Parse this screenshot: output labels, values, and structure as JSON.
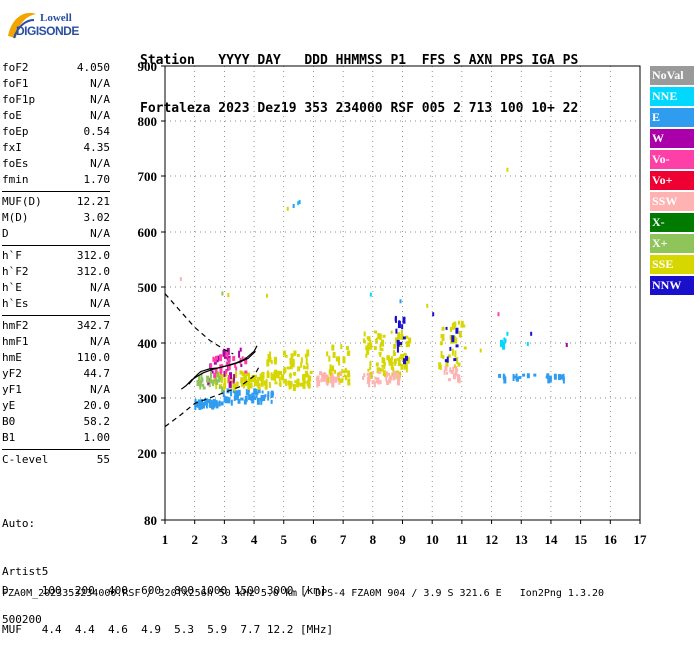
{
  "logo": {
    "line1": "Lowell",
    "line2": "DIGISONDE"
  },
  "header": {
    "row1": "Station   YYYY DAY   DDD HHMMSS P1  FFS S AXN PPS IGA PS",
    "row2": "Fortaleza 2023 Dez19 353 234000 RSF 005 2 713 100 10+ 22"
  },
  "params": [
    [
      {
        "label": "foF2",
        "value": "4.050"
      },
      {
        "label": "foF1",
        "value": "N/A"
      },
      {
        "label": "foF1p",
        "value": "N/A"
      },
      {
        "label": "foE",
        "value": "N/A"
      },
      {
        "label": "foEp",
        "value": "0.54"
      },
      {
        "label": "fxI",
        "value": "4.35"
      },
      {
        "label": "foEs",
        "value": "N/A"
      },
      {
        "label": "fmin",
        "value": "1.70"
      }
    ],
    [
      {
        "label": "MUF(D)",
        "value": "12.21"
      },
      {
        "label": "M(D)",
        "value": "3.02"
      },
      {
        "label": "D",
        "value": "N/A"
      }
    ],
    [
      {
        "label": "h`F",
        "value": "312.0"
      },
      {
        "label": "h`F2",
        "value": "312.0"
      },
      {
        "label": "h`E",
        "value": "N/A"
      },
      {
        "label": "h`Es",
        "value": "N/A"
      }
    ],
    [
      {
        "label": "hmF2",
        "value": "342.7"
      },
      {
        "label": "hmF1",
        "value": "N/A"
      },
      {
        "label": "hmE",
        "value": "110.0"
      },
      {
        "label": "yF2",
        "value": "44.7"
      },
      {
        "label": "yF1",
        "value": "N/A"
      },
      {
        "label": "yE",
        "value": "20.0"
      },
      {
        "label": "B0",
        "value": "58.2"
      },
      {
        "label": "B1",
        "value": "1.00"
      }
    ],
    [
      {
        "label": "C-level",
        "value": "55"
      }
    ]
  ],
  "extra": {
    "auto": "Auto:",
    "artist": "Artist5",
    "code": "500200"
  },
  "footer": {
    "d_row": "D     100  200  400  600  800 1000 1500 3000 [km]",
    "muf_row": "MUF   4.4  4.4  4.6  4.9  5.3  5.9  7.7 12.2 [MHz]",
    "file_row": "FZA0M_2023353234000.RSF / 320fx256h 50 kHz 5.0 km / DPS-4 FZA0M 904 / 3.9 S 321.6 E   Ion2Png 1.3.20"
  },
  "legend": [
    {
      "label": "NoVal",
      "color": "#9a9a9a"
    },
    {
      "label": "NNE",
      "color": "#00d8ff"
    },
    {
      "label": "E",
      "color": "#2f9cf0"
    },
    {
      "label": "W",
      "color": "#aa00aa"
    },
    {
      "label": "Vo-",
      "color": "#ff3fa8"
    },
    {
      "label": "Vo+",
      "color": "#ee0033"
    },
    {
      "label": "SSW",
      "color": "#ffb2b2"
    },
    {
      "label": "X-",
      "color": "#007a00"
    },
    {
      "label": "X+",
      "color": "#8fc45a"
    },
    {
      "label": "SSE",
      "color": "#d6d600"
    },
    {
      "label": "NNW",
      "color": "#1a10cc"
    }
  ],
  "chart_data": {
    "type": "scatter",
    "x_ticks": [
      1,
      2,
      3,
      4,
      5,
      6,
      7,
      8,
      9,
      10,
      11,
      12,
      13,
      14,
      15,
      16,
      17
    ],
    "y_ticks": [
      80,
      200,
      300,
      400,
      500,
      600,
      700,
      800,
      900
    ],
    "xlim": [
      1,
      17
    ],
    "ylim": [
      80,
      900
    ],
    "grid": true,
    "profile_curve": [
      [
        1.55,
        316
      ],
      [
        1.7,
        322
      ],
      [
        1.9,
        333
      ],
      [
        2.1,
        340
      ],
      [
        2.3,
        346
      ],
      [
        2.6,
        352
      ],
      [
        2.9,
        356
      ],
      [
        3.2,
        360
      ],
      [
        3.5,
        365
      ],
      [
        3.8,
        372
      ],
      [
        4.05,
        385
      ]
    ],
    "trace_curve": [
      [
        1.8,
        325
      ],
      [
        2.0,
        338
      ],
      [
        2.2,
        348
      ],
      [
        2.5,
        353
      ],
      [
        2.8,
        355
      ],
      [
        3.1,
        359
      ],
      [
        3.4,
        364
      ],
      [
        3.7,
        371
      ],
      [
        4.0,
        385
      ],
      [
        4.1,
        395
      ]
    ],
    "upper_bound_curve": [
      [
        1.0,
        488
      ],
      [
        1.5,
        458
      ],
      [
        2.0,
        428
      ],
      [
        2.5,
        405
      ],
      [
        3.0,
        388
      ],
      [
        3.3,
        380
      ]
    ],
    "lower_bound_curve": [
      [
        1.0,
        248
      ],
      [
        1.5,
        268
      ],
      [
        2.0,
        290
      ],
      [
        2.5,
        300
      ],
      [
        3.0,
        310
      ],
      [
        3.5,
        320
      ],
      [
        4.0,
        340
      ],
      [
        4.2,
        360
      ]
    ],
    "clusters": [
      {
        "x": [
          1.9,
          2.9
        ],
        "y": [
          288,
          300
        ],
        "color": "#2f9cf0",
        "n": 45
      },
      {
        "x": [
          2.9,
          4.6
        ],
        "y": [
          296,
          318
        ],
        "color": "#2f9cf0",
        "n": 50
      },
      {
        "x": [
          2.6,
          3.9
        ],
        "y": [
          325,
          352
        ],
        "color": "#d6d600",
        "n": 40
      },
      {
        "x": [
          3.6,
          5.9
        ],
        "y": [
          325,
          350
        ],
        "color": "#d6d600",
        "n": 70
      },
      {
        "x": [
          4.4,
          5.8
        ],
        "y": [
          345,
          390
        ],
        "color": "#d6d600",
        "n": 40
      },
      {
        "x": [
          6.0,
          6.9
        ],
        "y": [
          330,
          350
        ],
        "color": "#ffb2b2",
        "n": 30
      },
      {
        "x": [
          6.4,
          7.2
        ],
        "y": [
          330,
          400
        ],
        "color": "#d6d600",
        "n": 35
      },
      {
        "x": [
          7.6,
          9.2
        ],
        "y": [
          345,
          425
        ],
        "color": "#d6d600",
        "n": 90
      },
      {
        "x": [
          7.6,
          8.9
        ],
        "y": [
          330,
          350
        ],
        "color": "#ffb2b2",
        "n": 30
      },
      {
        "x": [
          2.4,
          3.6
        ],
        "y": [
          330,
          395
        ],
        "color": "#aa00aa",
        "n": 25
      },
      {
        "x": [
          2.5,
          3.7
        ],
        "y": [
          340,
          385
        ],
        "color": "#ff3fa8",
        "n": 25
      },
      {
        "x": [
          2.0,
          2.9
        ],
        "y": [
          318,
          350
        ],
        "color": "#8fc45a",
        "n": 25
      },
      {
        "x": [
          8.7,
          9.1
        ],
        "y": [
          370,
          460
        ],
        "color": "#1a10cc",
        "n": 15
      },
      {
        "x": [
          10.2,
          11.2
        ],
        "y": [
          360,
          440
        ],
        "color": "#d6d600",
        "n": 30
      },
      {
        "x": [
          10.3,
          10.9
        ],
        "y": [
          335,
          360
        ],
        "color": "#ffb2b2",
        "n": 15
      },
      {
        "x": [
          10.4,
          10.8
        ],
        "y": [
          370,
          430
        ],
        "color": "#1a10cc",
        "n": 8
      },
      {
        "x": [
          12.2,
          14.5
        ],
        "y": [
          338,
          346
        ],
        "color": "#2f9cf0",
        "n": 22
      },
      {
        "x": [
          12.2,
          13.4
        ],
        "y": [
          395,
          410
        ],
        "color": "#00d8ff",
        "n": 6
      }
    ],
    "isolated": [
      {
        "x": 5.1,
        "y": 645,
        "color": "#d6d600"
      },
      {
        "x": 5.3,
        "y": 650,
        "color": "#2f9cf0"
      },
      {
        "x": 5.45,
        "y": 655,
        "color": "#00d8ff"
      },
      {
        "x": 5.5,
        "y": 657,
        "color": "#2f9cf0"
      },
      {
        "x": 12.5,
        "y": 715,
        "color": "#d6d600"
      },
      {
        "x": 1.5,
        "y": 518,
        "color": "#ffb2b2"
      },
      {
        "x": 2.9,
        "y": 492,
        "color": "#8fc45a"
      },
      {
        "x": 3.1,
        "y": 489,
        "color": "#d6d600"
      },
      {
        "x": 4.4,
        "y": 488,
        "color": "#d6d600"
      },
      {
        "x": 7.9,
        "y": 490,
        "color": "#00d8ff"
      },
      {
        "x": 8.9,
        "y": 478,
        "color": "#2f9cf0"
      },
      {
        "x": 10.0,
        "y": 455,
        "color": "#1a10cc"
      },
      {
        "x": 12.2,
        "y": 455,
        "color": "#ff3fa8"
      },
      {
        "x": 12.5,
        "y": 420,
        "color": "#00d8ff"
      },
      {
        "x": 13.3,
        "y": 420,
        "color": "#1a10cc"
      },
      {
        "x": 14.5,
        "y": 400,
        "color": "#aa00aa"
      },
      {
        "x": 9.8,
        "y": 470,
        "color": "#d6d600"
      },
      {
        "x": 11.6,
        "y": 390,
        "color": "#d6d600"
      }
    ]
  }
}
